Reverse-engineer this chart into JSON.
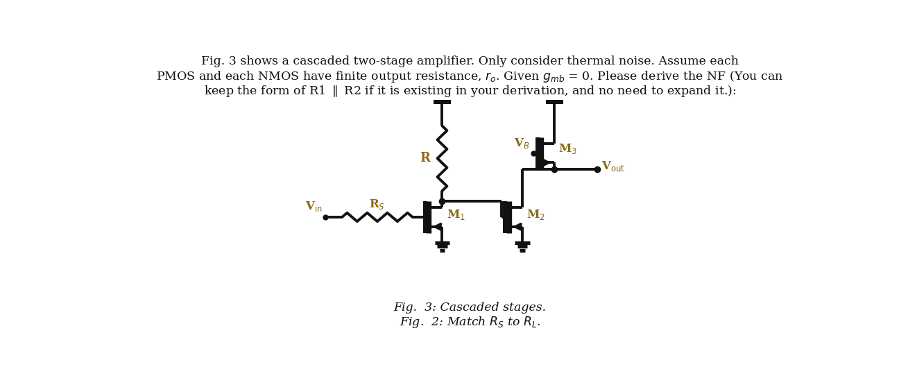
{
  "bg_color": "#ffffff",
  "text_color": "#000000",
  "label_color": "#8B6914",
  "circuit_color": "#111111",
  "lw": 2.8,
  "figsize": [
    13.22,
    5.55
  ],
  "dpi": 100,
  "caption1": "Fig.  3: Cascaded stages.",
  "caption2": "Fig.  2: Match $R_S$ to $R_L$."
}
